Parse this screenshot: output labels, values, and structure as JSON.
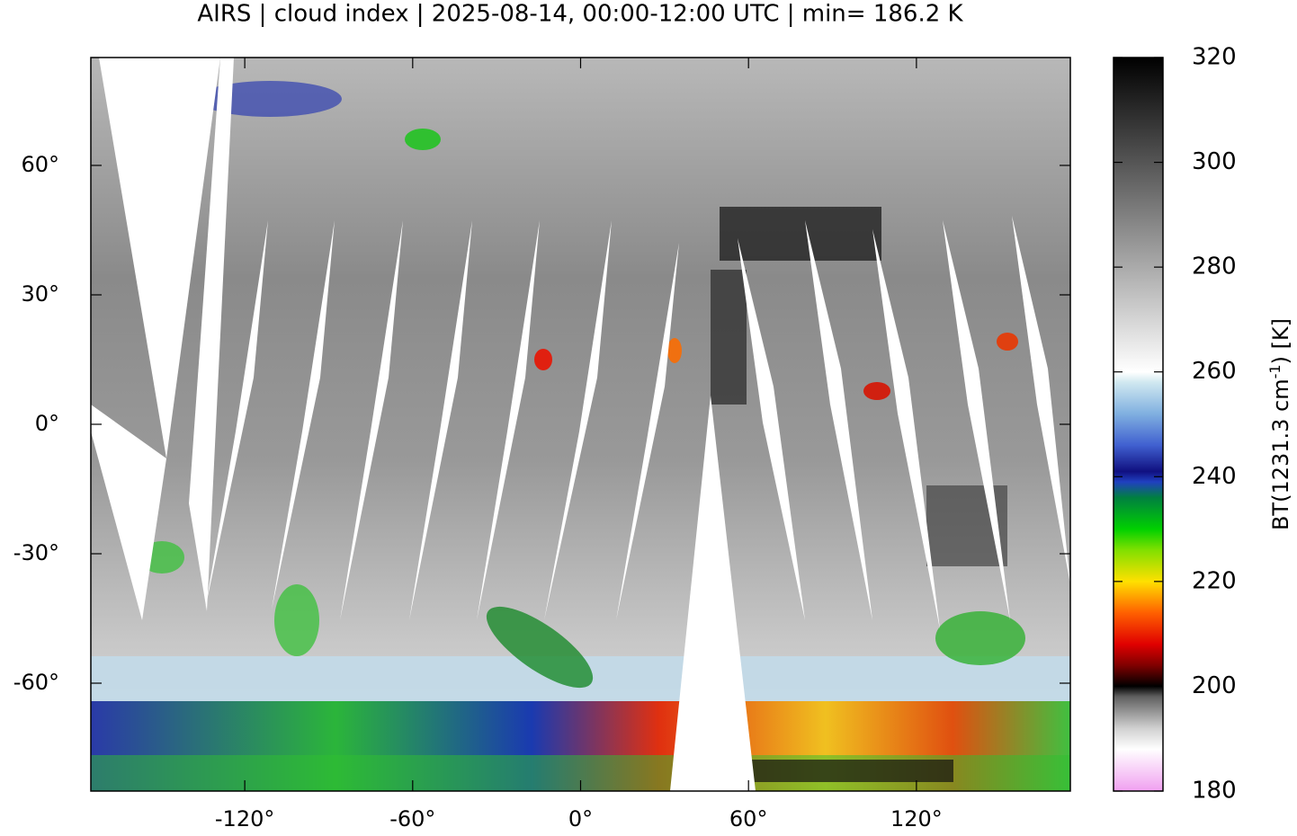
{
  "title": "AIRS | cloud index | 2025-08-14, 00:00-12:00 UTC | min= 186.2 K",
  "map": {
    "xlim": [
      -175,
      175
    ],
    "ylim": [
      -85,
      85
    ],
    "xticks": [
      {
        "value": -120,
        "label": "-120°"
      },
      {
        "value": -60,
        "label": "-60°"
      },
      {
        "value": 0,
        "label": "0°"
      },
      {
        "value": 60,
        "label": "60°"
      },
      {
        "value": 120,
        "label": "120°"
      }
    ],
    "yticks": [
      {
        "value": 60,
        "label": "60°"
      },
      {
        "value": 30,
        "label": "30°"
      },
      {
        "value": 0,
        "label": "0°"
      },
      {
        "value": -30,
        "label": "-30°"
      },
      {
        "value": -60,
        "label": "-60°"
      }
    ]
  },
  "colorbar": {
    "lim": [
      180,
      320
    ],
    "ticks": [
      180,
      200,
      220,
      240,
      260,
      280,
      300,
      320
    ],
    "label": {
      "text": "BT(1231.3 cm",
      "superscript": "-1",
      "suffix": ") [K]"
    },
    "colormap": [
      [
        180,
        "#f0a0f0"
      ],
      [
        188,
        "#ffffff"
      ],
      [
        192,
        "#d0d0d0"
      ],
      [
        198,
        "#606060"
      ],
      [
        200,
        "#000000"
      ],
      [
        204,
        "#800000"
      ],
      [
        208,
        "#e00000"
      ],
      [
        214,
        "#ff6000"
      ],
      [
        220,
        "#ffe000"
      ],
      [
        226,
        "#80e000"
      ],
      [
        230,
        "#00d000"
      ],
      [
        236,
        "#008040"
      ],
      [
        239,
        "#2040c0"
      ],
      [
        241,
        "#101080"
      ],
      [
        246,
        "#4060d0"
      ],
      [
        252,
        "#80b0e0"
      ],
      [
        258,
        "#d0e8f0"
      ],
      [
        260,
        "#ffffff"
      ],
      [
        320,
        "#000000"
      ]
    ]
  }
}
